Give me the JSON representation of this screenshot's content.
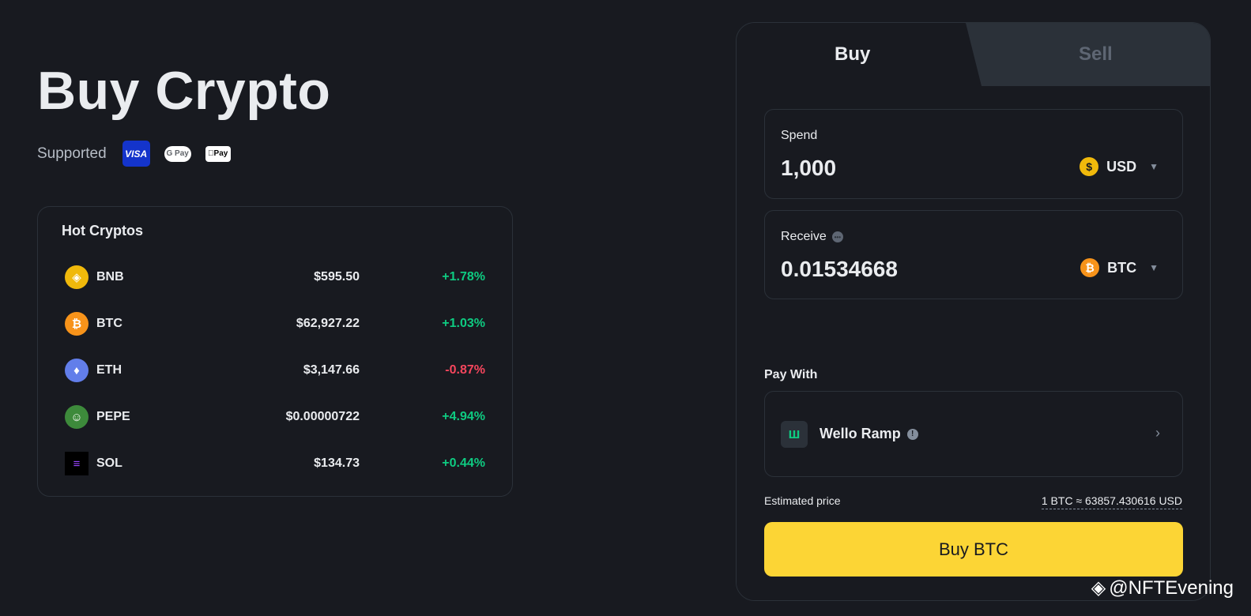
{
  "page": {
    "title": "Buy Crypto",
    "supported_label": "Supported",
    "payment_logos": [
      {
        "name": "visa-logo",
        "text": "VISA",
        "color": "#1434cb"
      },
      {
        "name": "google-pay-logo",
        "text": "G Pay",
        "color": "#ffffff"
      },
      {
        "name": "apple-pay-logo",
        "text": "Pay",
        "color": "#ffffff"
      }
    ]
  },
  "hot_cryptos": {
    "title": "Hot Cryptos",
    "rows": [
      {
        "symbol": "BNB",
        "price": "$595.50",
        "change": "+1.78%",
        "direction": "up",
        "icon": "bnb-icon",
        "color": "#f0b90b",
        "glyph": "◈"
      },
      {
        "symbol": "BTC",
        "price": "$62,927.22",
        "change": "+1.03%",
        "direction": "up",
        "icon": "btc-icon",
        "color": "#f7931a",
        "glyph": "₿"
      },
      {
        "symbol": "ETH",
        "price": "$3,147.66",
        "change": "-0.87%",
        "direction": "down",
        "icon": "eth-icon",
        "color": "#627eea",
        "glyph": "♦"
      },
      {
        "symbol": "PEPE",
        "price": "$0.00000722",
        "change": "+4.94%",
        "direction": "up",
        "icon": "pepe-icon",
        "color": "#3d8a3b",
        "glyph": "☺"
      },
      {
        "symbol": "SOL",
        "price": "$134.73",
        "change": "+0.44%",
        "direction": "up",
        "icon": "sol-icon",
        "color": "#000000",
        "glyph": "≡"
      }
    ]
  },
  "trade": {
    "tabs": {
      "buy": "Buy",
      "sell": "Sell",
      "active": "buy"
    },
    "spend": {
      "label": "Spend",
      "value": "1,000",
      "currency": "USD",
      "currency_icon": "usd-coin-icon",
      "currency_glyph": "$",
      "currency_color": "#f0b90b"
    },
    "receive": {
      "label": "Receive",
      "value": "0.01534668",
      "currency": "BTC",
      "currency_icon": "btc-icon",
      "currency_glyph": "₿",
      "currency_color": "#f7931a"
    },
    "pay_with": {
      "label": "Pay With",
      "provider": "Wello Ramp",
      "provider_icon": "wello-ramp-logo"
    },
    "estimated": {
      "label": "Estimated price",
      "value": "1 BTC ≈ 63857.430616 USD"
    },
    "buy_button": "Buy BTC"
  },
  "colors": {
    "background": "#181a20",
    "up": "#0ecb81",
    "down": "#f6465d",
    "accent": "#fcd535"
  },
  "watermark": "@NFTEvening"
}
